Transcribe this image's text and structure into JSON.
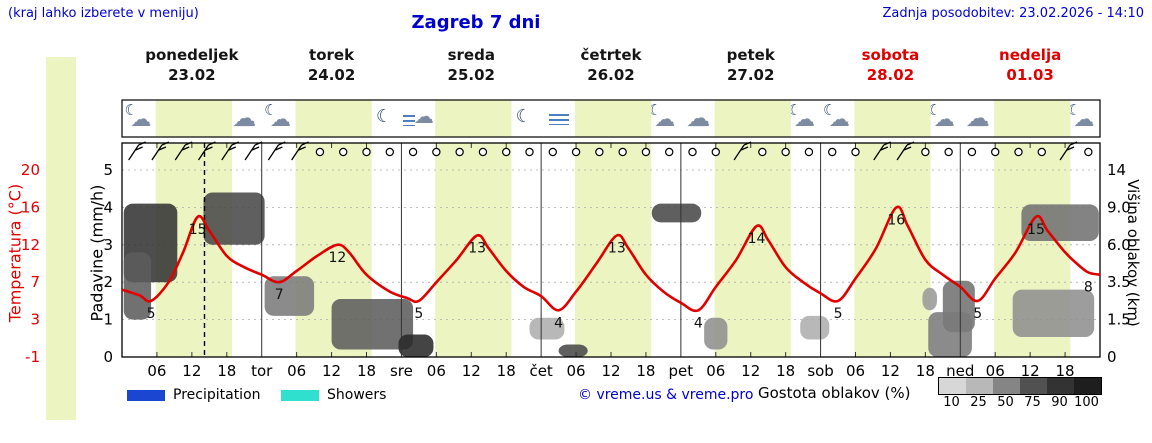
{
  "header": {
    "note": "(kraj lahko izberete v meniju)",
    "title": "Zagreb 7 dni",
    "updated": "Zadnja posodobitev: 23.02.2026 - 14:10"
  },
  "days": [
    {
      "name": "ponedeljek",
      "date": "23.02",
      "weekend": false
    },
    {
      "name": "torek",
      "date": "24.02",
      "weekend": false
    },
    {
      "name": "sreda",
      "date": "25.02",
      "weekend": false
    },
    {
      "name": "četrtek",
      "date": "26.02",
      "weekend": false
    },
    {
      "name": "petek",
      "date": "27.02",
      "weekend": false
    },
    {
      "name": "sobota",
      "date": "28.02",
      "weekend": true
    },
    {
      "name": "nedelja",
      "date": "01.03",
      "weekend": true
    }
  ],
  "axes": {
    "temp_label": "Temperatura (°C)",
    "temp_ticks": [
      "20",
      "16",
      "12",
      "7",
      "3",
      "-1"
    ],
    "precip_label": "Padavine (mm/h)",
    "precip_ticks": [
      "5",
      "4",
      "3",
      "2",
      "1",
      "0"
    ],
    "cloud_label": "Višina oblakov (km)",
    "cloud_ticks": [
      "14",
      "9.0",
      "6.0",
      "3.5",
      "1.5",
      "0"
    ],
    "x_ticks": [
      "06",
      "12",
      "18"
    ],
    "day_abbr": [
      "tor",
      "sre",
      "čet",
      "pet",
      "sob",
      "ned"
    ]
  },
  "chart_data": {
    "type": "line",
    "title": "Zagreb 7 dni",
    "now_hour": 14.17,
    "daylight_band": [
      5.8,
      18.9
    ],
    "temp_axis_ticks": [
      20,
      16,
      12,
      7,
      3,
      -1
    ],
    "precip_axis_ticks": [
      5,
      4,
      3,
      2,
      1,
      0
    ],
    "cloud_axis_ticks_km": [
      14,
      9,
      6,
      3.5,
      1.5,
      0
    ],
    "series": [
      {
        "name": "Temperatura (°C)",
        "color": "#e10000",
        "points_hour_temp": [
          [
            0,
            6.2
          ],
          [
            3,
            5.6
          ],
          [
            5,
            5
          ],
          [
            8,
            7
          ],
          [
            10.5,
            11
          ],
          [
            13,
            15
          ],
          [
            15,
            13.5
          ],
          [
            18,
            10.5
          ],
          [
            21,
            9
          ],
          [
            24,
            8
          ],
          [
            27,
            7
          ],
          [
            30,
            8.5
          ],
          [
            33.5,
            10.5
          ],
          [
            37,
            12
          ],
          [
            39,
            11
          ],
          [
            42,
            8
          ],
          [
            46,
            6
          ],
          [
            49,
            5.3
          ],
          [
            51,
            5
          ],
          [
            54,
            7
          ],
          [
            57.5,
            10
          ],
          [
            61,
            13
          ],
          [
            63,
            11.5
          ],
          [
            66,
            8.5
          ],
          [
            69,
            6.5
          ],
          [
            72,
            5.5
          ],
          [
            75,
            4
          ],
          [
            78,
            6
          ],
          [
            81.5,
            9.5
          ],
          [
            85,
            13
          ],
          [
            87,
            11.5
          ],
          [
            90,
            8
          ],
          [
            93,
            6
          ],
          [
            96,
            4.8
          ],
          [
            99,
            4
          ],
          [
            102,
            6.5
          ],
          [
            105.5,
            10
          ],
          [
            109,
            14
          ],
          [
            111,
            12.5
          ],
          [
            114,
            9
          ],
          [
            117,
            7
          ],
          [
            120,
            5.8
          ],
          [
            123,
            5
          ],
          [
            126,
            7.5
          ],
          [
            129.5,
            11.5
          ],
          [
            133,
            16
          ],
          [
            135,
            14
          ],
          [
            138,
            10
          ],
          [
            141,
            8
          ],
          [
            144,
            6.5
          ],
          [
            147,
            5
          ],
          [
            150,
            7.5
          ],
          [
            153.5,
            11
          ],
          [
            157,
            15
          ],
          [
            159,
            13.5
          ],
          [
            162,
            11
          ],
          [
            164,
            9.5
          ],
          [
            166,
            8.3
          ],
          [
            168,
            8
          ]
        ]
      }
    ],
    "point_labels": [
      {
        "hour": 5,
        "temp": 5
      },
      {
        "hour": 13,
        "temp": 15
      },
      {
        "hour": 27,
        "temp": 7
      },
      {
        "hour": 37,
        "temp": 12
      },
      {
        "hour": 51,
        "temp": 5
      },
      {
        "hour": 61,
        "temp": 13
      },
      {
        "hour": 75,
        "temp": 4
      },
      {
        "hour": 85,
        "temp": 13
      },
      {
        "hour": 99,
        "temp": 4
      },
      {
        "hour": 109,
        "temp": 14
      },
      {
        "hour": 123,
        "temp": 5
      },
      {
        "hour": 133,
        "temp": 16
      },
      {
        "hour": 147,
        "temp": 5
      },
      {
        "hour": 157,
        "temp": 15
      },
      {
        "hour": 166,
        "temp": 8
      }
    ],
    "cloud_blobs": [
      {
        "hours": [
          0.3,
          9.5
        ],
        "km": [
          3.5,
          9.5
        ],
        "density": 90
      },
      {
        "hours": [
          0.3,
          5
        ],
        "km": [
          1.5,
          5.5
        ],
        "density": 70
      },
      {
        "hours": [
          14,
          24.5
        ],
        "km": [
          6,
          11
        ],
        "density": 80
      },
      {
        "hours": [
          24.5,
          33
        ],
        "km": [
          1.7,
          3.9
        ],
        "density": 55
      },
      {
        "hours": [
          36,
          50
        ],
        "km": [
          0.3,
          2.6
        ],
        "density": 70
      },
      {
        "hours": [
          47.5,
          53.5
        ],
        "km": [
          0,
          0.9
        ],
        "density": 95
      },
      {
        "hours": [
          70,
          76
        ],
        "km": [
          0.7,
          1.6
        ],
        "density": 30
      },
      {
        "hours": [
          75,
          80
        ],
        "km": [
          0,
          0.5
        ],
        "density": 80
      },
      {
        "hours": [
          91,
          99.5
        ],
        "km": [
          7.8,
          9.5
        ],
        "density": 80
      },
      {
        "hours": [
          100,
          104
        ],
        "km": [
          0.3,
          1.6
        ],
        "density": 45
      },
      {
        "hours": [
          116.5,
          121.5
        ],
        "km": [
          0.7,
          1.7
        ],
        "density": 30
      },
      {
        "hours": [
          137.5,
          140
        ],
        "km": [
          2,
          3.2
        ],
        "density": 40
      },
      {
        "hours": [
          141,
          146.5
        ],
        "km": [
          1,
          3.6
        ],
        "density": 60
      },
      {
        "hours": [
          138.5,
          146
        ],
        "km": [
          0,
          1.9
        ],
        "density": 55
      },
      {
        "hours": [
          154.5,
          167.8
        ],
        "km": [
          6.3,
          9.4
        ],
        "density": 60
      },
      {
        "hours": [
          153,
          167
        ],
        "km": [
          0.8,
          3.1
        ],
        "density": 45
      }
    ],
    "wind": {
      "start_hour": 2,
      "step_hours": 4,
      "count": 42,
      "barb_slots": [
        0,
        1,
        2,
        3,
        4,
        5,
        6,
        7,
        26,
        32,
        33,
        40
      ]
    },
    "icons": [
      [
        "moon-cloud",
        "sun-cloud",
        "sun-cloud",
        "cloud"
      ],
      [
        "moon-cloud",
        "cloud",
        "sun-cloud",
        "moon"
      ],
      [
        "wind-cloud",
        "fog",
        "sun-cloud",
        "moon"
      ],
      [
        "fog",
        "fog-sun",
        "sun",
        "moon-cloud"
      ],
      [
        "cloud",
        "sun-cloud",
        "sun-cloud",
        "moon-cloud"
      ],
      [
        "moon-cloud",
        "cloud",
        "sun-cloud",
        "moon-cloud"
      ],
      [
        "cloud",
        "sun-cloud",
        "cloud",
        "moon-cloud"
      ]
    ]
  },
  "legend": {
    "precipitation": "Precipitation",
    "showers": "Showers",
    "copyright": "© vreme.us & vreme.pro",
    "cloud_density": "Gostota oblakov (%)",
    "density_scale": [
      10,
      25,
      50,
      75,
      90,
      100
    ],
    "precip_color": "#1a46d2",
    "showers_color": "#2ee0cd"
  }
}
